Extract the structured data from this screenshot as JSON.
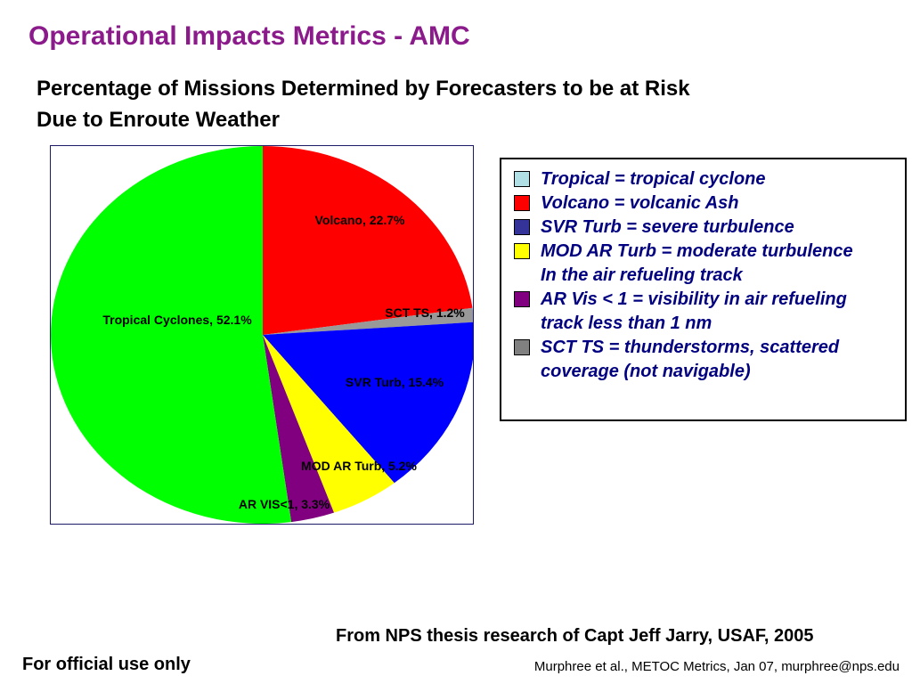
{
  "header": {
    "title": "Operational Impacts Metrics - AMC",
    "subtitle_line1": "Percentage of Missions Determined by Forecasters to be at Risk",
    "subtitle_line2": "Due to Enroute Weather"
  },
  "legend": {
    "items": [
      {
        "color": "#b0e0e6",
        "line1": "Tropical = tropical cyclone",
        "line2": ""
      },
      {
        "color": "#ff0000",
        "line1": "Volcano = volcanic Ash",
        "line2": ""
      },
      {
        "color": "#333399",
        "line1": "SVR Turb = severe turbulence",
        "line2": ""
      },
      {
        "color": "#ffff00",
        "line1": "MOD AR Turb = moderate turbulence",
        "line2": "In the air refueling track"
      },
      {
        "color": "#800080",
        "line1": "AR Vis < 1 = visibility in air refueling",
        "line2": "track less than 1 nm"
      },
      {
        "color": "#808080",
        "line1": "SCT TS = thunderstorms, scattered",
        "line2": "coverage (not navigable)"
      }
    ]
  },
  "chart_data": {
    "type": "pie",
    "slices": [
      {
        "label": "Volcano, 22.7%",
        "value": 22.7,
        "color": "#ff0000"
      },
      {
        "label": "SCT TS, 1.2%",
        "value": 1.2,
        "color": "#999999"
      },
      {
        "label": "SVR Turb, 15.4%",
        "value": 15.4,
        "color": "#0000ff"
      },
      {
        "label": "MOD AR Turb, 5.2%",
        "value": 5.2,
        "color": "#ffff00"
      },
      {
        "label": "AR VIS<1, 3.3%",
        "value": 3.3,
        "color": "#800080"
      },
      {
        "label": "Tropical Cyclones, 52.1%",
        "value": 52.1,
        "color": "#00ff00"
      }
    ]
  },
  "footer": {
    "source": "From NPS thesis research of Capt Jeff Jarry, USAF, 2005",
    "official": "For official use only",
    "credit": "Murphree et al., METOC Metrics, Jan 07, murphree@nps.edu"
  }
}
